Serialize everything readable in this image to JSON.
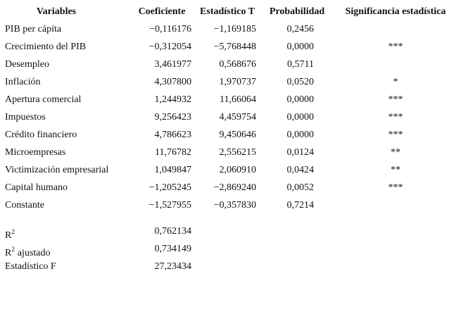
{
  "table": {
    "headers": [
      "Variables",
      "Coeficiente",
      "Estadístico T",
      "Probabilidad",
      "Significancia estadística"
    ],
    "rows": [
      {
        "variable": "PIB per cápita",
        "values": [
          "−0,116176",
          "−1,169185",
          "0,2456"
        ]
      },
      {
        "variable": "Crecimiento del PIB",
        "values": [
          "−0,312054",
          "−5,768448",
          "0,0000"
        ],
        "significance": "***"
      },
      {
        "variable": "Desempleo",
        "values": [
          "3,461977",
          "0,568676",
          "0,5711"
        ]
      },
      {
        "variable": "Inflación",
        "values": [
          "4,307800",
          "1,970737",
          "0,0520"
        ],
        "significance": "*"
      },
      {
        "variable": "Apertura comercial",
        "values": [
          "1,244932",
          "11,66064",
          "0,0000"
        ],
        "significance": "***"
      },
      {
        "variable": "Impuestos",
        "values": [
          "9,256423",
          "4,459754",
          "0,0000"
        ],
        "significance": "***"
      },
      {
        "variable": "Crédito financiero",
        "values": [
          "4,786623",
          "9,450646",
          "0,0000"
        ],
        "significance": "***"
      },
      {
        "variable": "Microempresas",
        "values": [
          "11,76782",
          "2,556215",
          "0,0124"
        ],
        "significance": "**"
      },
      {
        "variable": "Victimización empresarial",
        "values": [
          "1,049847",
          "2,060910",
          "0,0424"
        ],
        "significance": "**"
      },
      {
        "variable": "Capital humano",
        "values": [
          "−1,205245",
          "−2,869240",
          "0,0052"
        ],
        "significance": "***"
      },
      {
        "variable": "Constante",
        "values": [
          "−1,527955",
          "−0,357830",
          "0,7214"
        ]
      },
      {
        "variable": "R",
        "superscript": "2",
        "values": [
          "0,762134"
        ]
      },
      {
        "variable": "R",
        "superscript": "2",
        "suffix": "ajustado",
        "values": [
          "0,734149"
        ]
      },
      {
        "variable": "Estadístico F",
        "values": [
          "27,23434"
        ]
      }
    ]
  }
}
